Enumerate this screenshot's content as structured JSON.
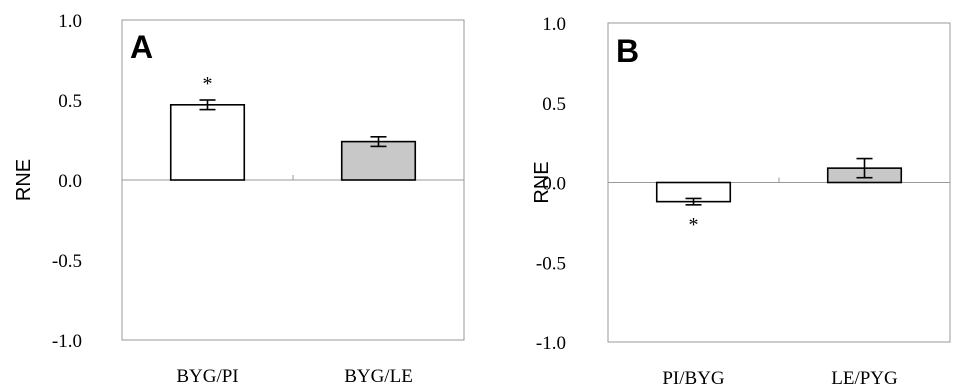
{
  "chart_data": [
    {
      "type": "bar",
      "panel_label": "A",
      "ylabel": "RNE",
      "ylim": [
        -1.0,
        1.0
      ],
      "yticks": [
        "1.0",
        "0.5",
        "0.0",
        "-0.5",
        "-1.0"
      ],
      "categories": [
        "BYG/PI",
        "BYG/LE"
      ],
      "values": [
        0.47,
        0.24
      ],
      "errors": [
        0.03,
        0.03
      ],
      "bar_colors": [
        "#ffffff",
        "#c8c8c8"
      ],
      "annotations": [
        "*",
        ""
      ]
    },
    {
      "type": "bar",
      "panel_label": "B",
      "ylabel": "RNE",
      "ylim": [
        -1.0,
        1.0
      ],
      "yticks": [
        "1.0",
        "0.5",
        "0.0",
        "-0.5",
        "-1.0"
      ],
      "categories": [
        "PI/BYG",
        "LE/PYG"
      ],
      "values": [
        -0.12,
        0.09
      ],
      "errors": [
        0.02,
        0.06
      ],
      "bar_colors": [
        "#ffffff",
        "#c8c8c8"
      ],
      "annotations": [
        "*",
        ""
      ]
    }
  ]
}
